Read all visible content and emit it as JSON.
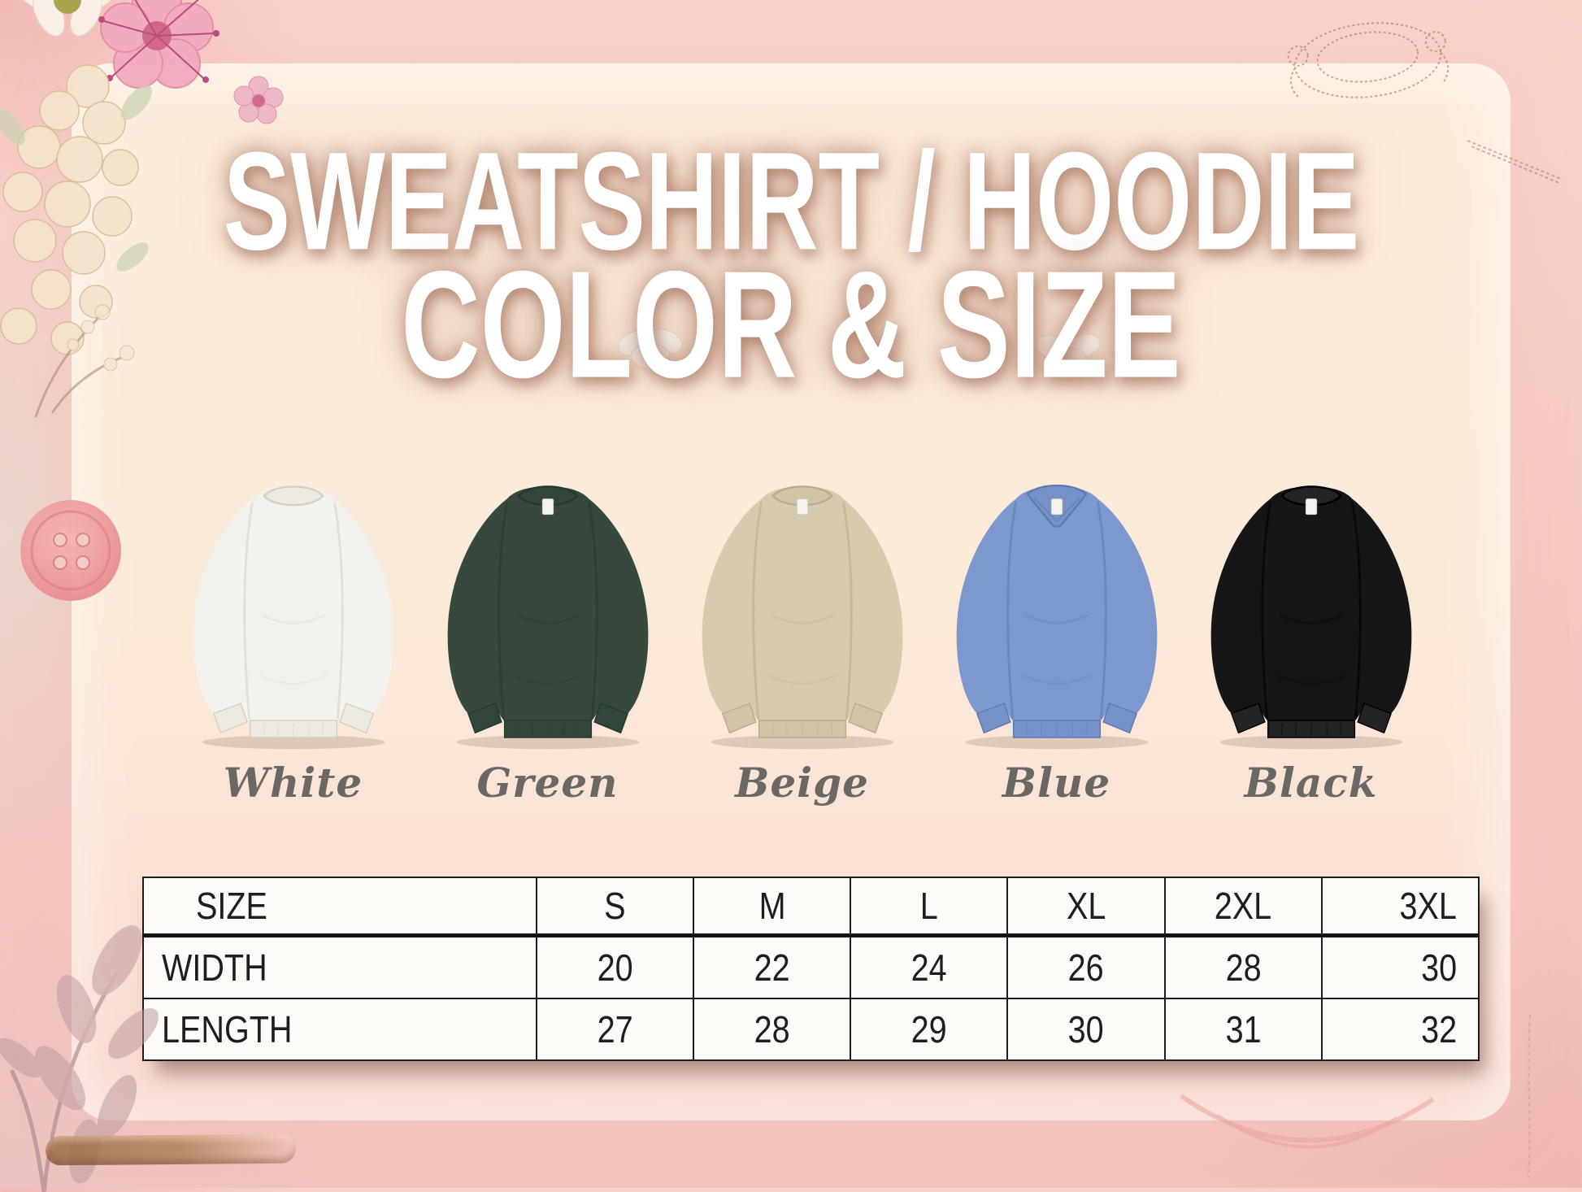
{
  "title": {
    "line1": "SWEATSHIRT / HOODIE",
    "line2": "COLOR & SIZE"
  },
  "products": [
    {
      "label": "White",
      "body_color": "#f3f1ec",
      "shade_color": "#d5cfc2",
      "rib_color": "#ece9e0",
      "neck": "crew",
      "tag": false
    },
    {
      "label": "Green",
      "body_color": "#37493d",
      "shade_color": "#253731",
      "rib_color": "#32453a",
      "neck": "crew",
      "tag": true
    },
    {
      "label": "Beige",
      "body_color": "#d7caae",
      "shade_color": "#bcab8b",
      "rib_color": "#d0c3a6",
      "neck": "crew",
      "tag": true
    },
    {
      "label": "Blue",
      "body_color": "#7d98cf",
      "shade_color": "#6079ae",
      "rib_color": "#7591c8",
      "neck": "v",
      "tag": true
    },
    {
      "label": "Black",
      "body_color": "#161616",
      "shade_color": "#000000",
      "rib_color": "#242424",
      "neck": "crew",
      "tag": true
    }
  ],
  "size_chart": {
    "columns": [
      "SIZE",
      "S",
      "M",
      "L",
      "XL",
      "2XL",
      "3XL"
    ],
    "rows": [
      {
        "label": "WIDTH",
        "values": [
          "20",
          "22",
          "24",
          "26",
          "28",
          "30"
        ]
      },
      {
        "label": "LENGTH",
        "values": [
          "27",
          "28",
          "29",
          "30",
          "31",
          "32"
        ]
      }
    ]
  },
  "colors": {
    "label_text": "#6b6765",
    "title_text": "#ffffff",
    "title_glow": "#965b46",
    "panel_bg": "#fcead9",
    "border_pink": "#f5c7c1",
    "table_bg": "#fcfbf7",
    "table_line": "#1d1d1d"
  },
  "decorations": {
    "top_left": "flower-cluster",
    "top_right": "ring-sketch",
    "left": "pink-button",
    "above_button": "flower-sprig",
    "bottom_left": "leaf-branch",
    "bottom_left_lower": "wood-stick",
    "bottom_right": "arc-sketch",
    "near_shirts": "white-mini-flowers"
  }
}
